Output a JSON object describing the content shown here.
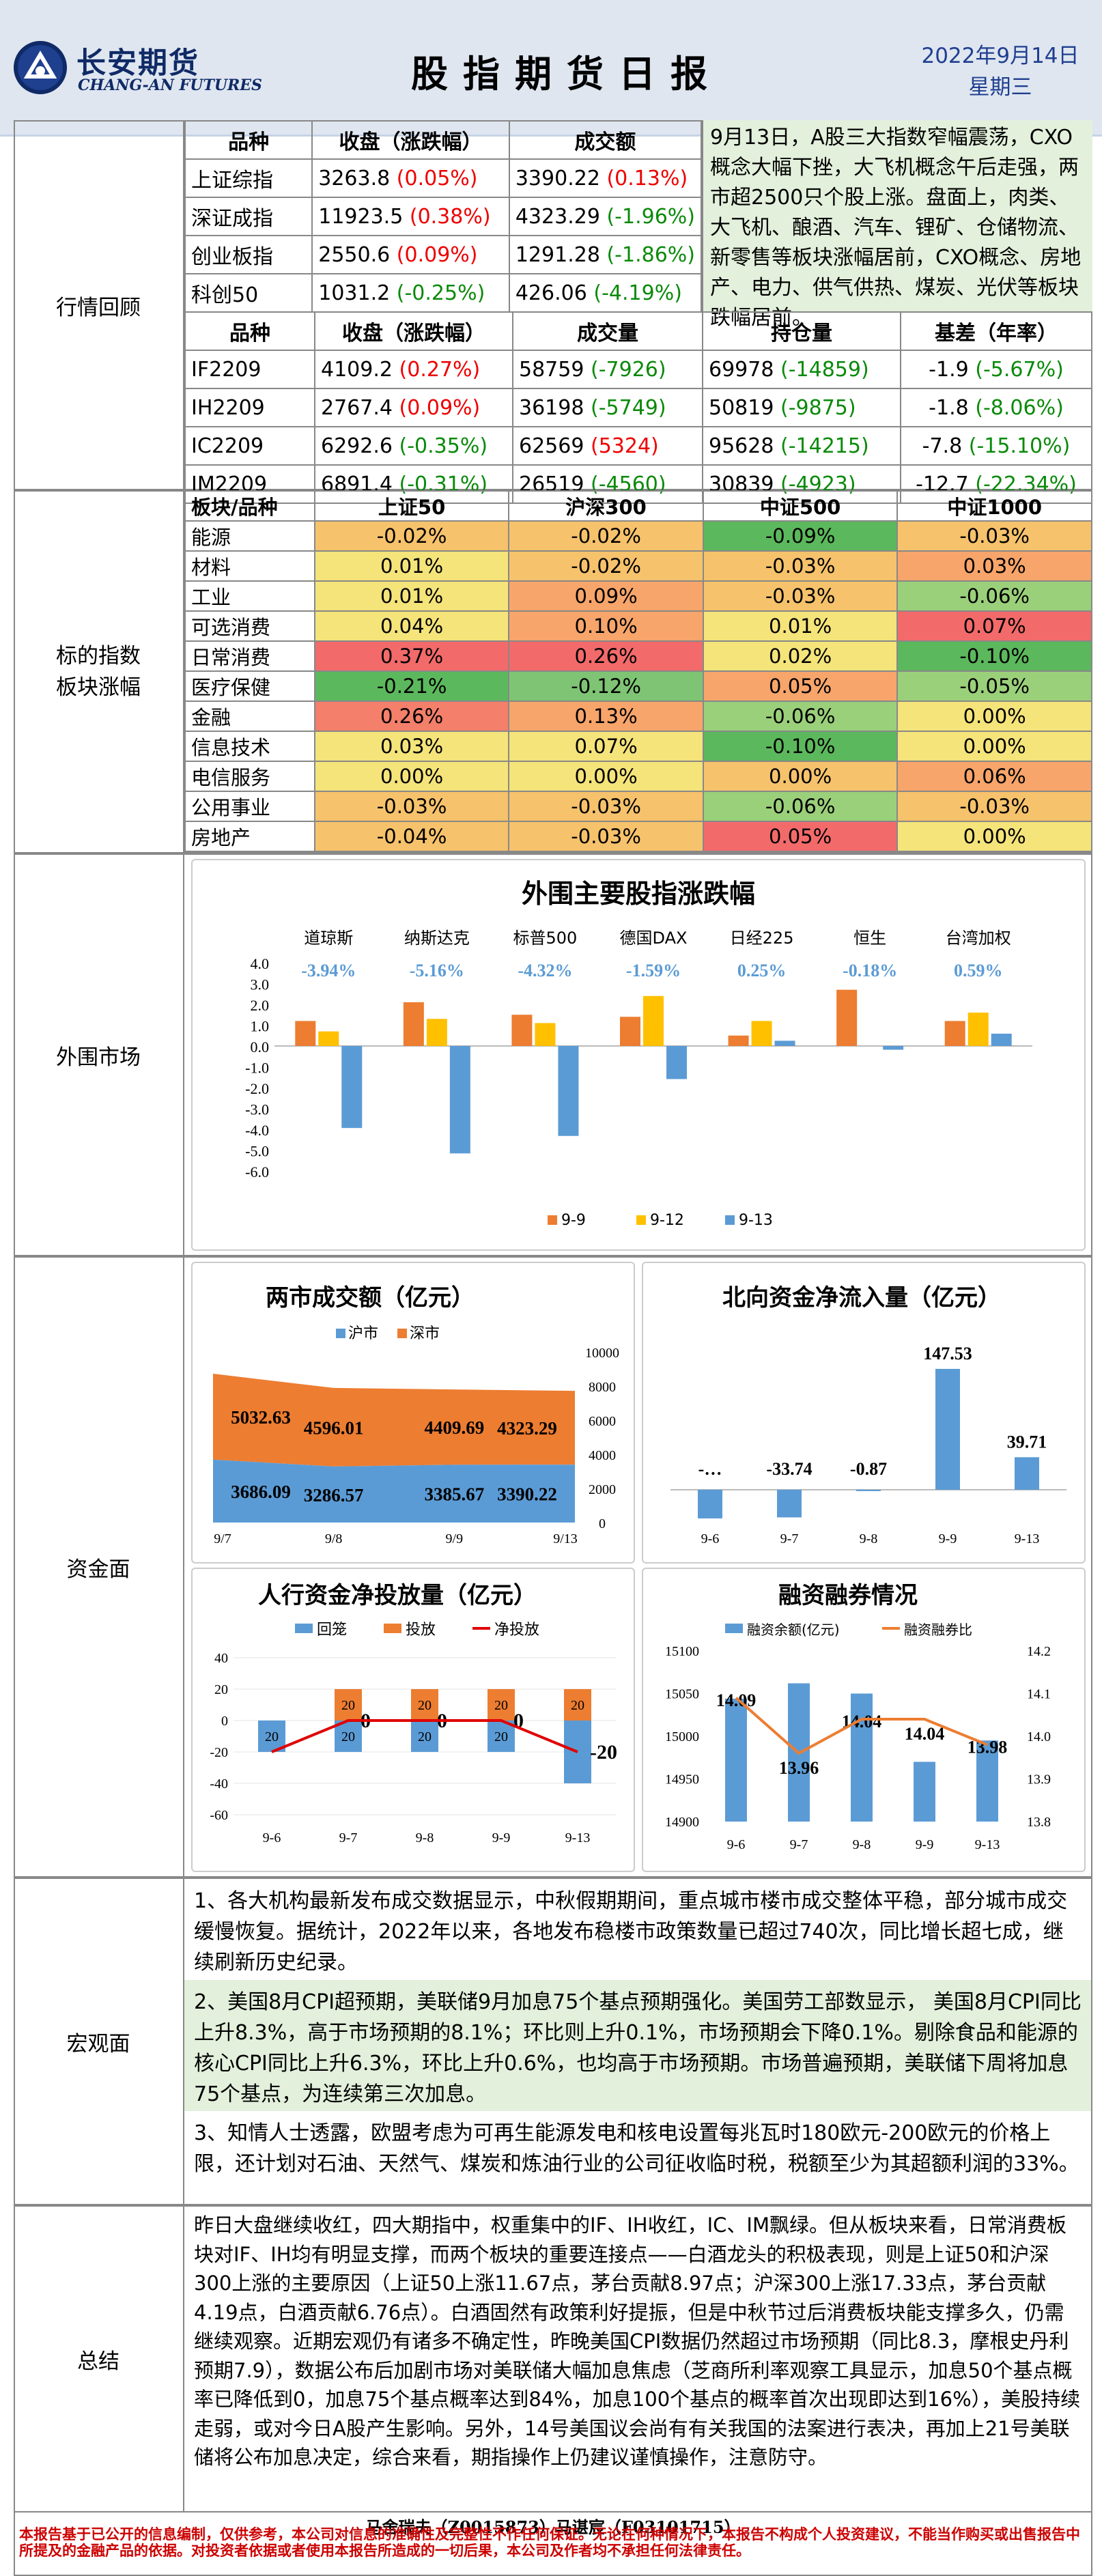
{
  "header": {
    "brand_cn": "长安期货",
    "brand_en": "CHANG-AN FUTURES",
    "title": "股指期货日报",
    "date": "2022年9月14日",
    "weekday": "星期三"
  },
  "sections": {
    "market": "行情回顾",
    "sectors": "标的指数\n板块涨幅",
    "overseas": "外围市场",
    "funds": "资金面",
    "macro": "宏观面",
    "summary": "总结"
  },
  "index_table": {
    "headers": [
      "品种",
      "收盘（涨跌幅）",
      "成交额"
    ],
    "rows": [
      [
        "上证综指",
        "3263.8",
        "(0.05%)",
        "3390.22",
        "(0.13%)"
      ],
      [
        "深证成指",
        "11923.5",
        "(0.38%)",
        "4323.29",
        "(-1.96%)"
      ],
      [
        "创业板指",
        "2550.6",
        "(0.09%)",
        "1291.28",
        "(-1.86%)"
      ],
      [
        "科创50",
        "1031.2",
        "(-0.25%)",
        "426.06",
        "(-4.19%)"
      ]
    ]
  },
  "futures_table": {
    "headers": [
      "品种",
      "收盘（涨跌幅）",
      "成交量",
      "持仓量",
      "基差（年率）"
    ],
    "rows": [
      [
        "IF2209",
        "4109.2",
        "(0.27%)",
        "58759",
        "(-7926)",
        "69978",
        "(-14859)",
        "-1.9",
        "(-5.67%)"
      ],
      [
        "IH2209",
        "2767.4",
        "(0.09%)",
        "36198",
        "(-5749)",
        "50819",
        "(-9875)",
        "-1.8",
        "(-8.06%)"
      ],
      [
        "IC2209",
        "6292.6",
        "(-0.35%)",
        "62569",
        "(5324)",
        "95628",
        "(-14215)",
        "-7.8",
        "(-15.10%)"
      ],
      [
        "IM2209",
        "6891.4",
        "(-0.31%)",
        "26519",
        "(-4560)",
        "30839",
        "(-4923)",
        "-12.7",
        "(-22.34%)"
      ]
    ]
  },
  "market_comment": "9月13日，A股三大指数窄幅震荡，CXO概念大幅下挫，大飞机概念午后走强，两市超2500只个股上涨。盘面上，肉类、大飞机、酿酒、汽车、锂矿、仓储物流、新零售等板块涨幅居前，CXO概念、房地产、电力、供气供热、煤炭、光伏等板块跌幅居前。",
  "heat": {
    "headers": [
      "板块/品种",
      "上证50",
      "沪深300",
      "中证500",
      "中证1000"
    ],
    "rows": [
      [
        "能源",
        "-0.02%",
        "-0.02%",
        "-0.09%",
        "-0.03%"
      ],
      [
        "材料",
        "0.01%",
        "-0.02%",
        "-0.03%",
        "0.03%"
      ],
      [
        "工业",
        "0.01%",
        "0.09%",
        "-0.03%",
        "-0.06%"
      ],
      [
        "可选消费",
        "0.04%",
        "0.10%",
        "0.01%",
        "0.07%"
      ],
      [
        "日常消费",
        "0.37%",
        "0.26%",
        "0.02%",
        "-0.10%"
      ],
      [
        "医疗保健",
        "-0.21%",
        "-0.12%",
        "0.05%",
        "-0.05%"
      ],
      [
        "金融",
        "0.26%",
        "0.13%",
        "-0.06%",
        "0.00%"
      ],
      [
        "信息技术",
        "0.03%",
        "0.07%",
        "-0.10%",
        "0.00%"
      ],
      [
        "电信服务",
        "0.00%",
        "0.00%",
        "0.00%",
        "0.06%"
      ],
      [
        "公用事业",
        "-0.03%",
        "-0.03%",
        "-0.06%",
        "-0.03%"
      ],
      [
        "房地产",
        "-0.04%",
        "-0.03%",
        "0.05%",
        "0.00%"
      ]
    ],
    "colors": [
      [
        "#f6c26b",
        "#f6c26b",
        "#5cb85c",
        "#f6c26b"
      ],
      [
        "#f4e47a",
        "#f6c26b",
        "#f6c26b",
        "#f7a56a"
      ],
      [
        "#f4e47a",
        "#f7a56a",
        "#f6c26b",
        "#9bd07a"
      ],
      [
        "#f4e47a",
        "#f7a56a",
        "#f4e47a",
        "#f36a6a"
      ],
      [
        "#f36a6a",
        "#f36a6a",
        "#f4e47a",
        "#5cb85c"
      ],
      [
        "#5cb85c",
        "#7fc474",
        "#f7a56a",
        "#9bd07a"
      ],
      [
        "#f47f6a",
        "#f7a56a",
        "#9bd07a",
        "#f4e47a"
      ],
      [
        "#f4e47a",
        "#f4e47a",
        "#5cb85c",
        "#f4e47a"
      ],
      [
        "#f4e47a",
        "#f4e47a",
        "#f6c26b",
        "#f7a56a"
      ],
      [
        "#f6c26b",
        "#f6c26b",
        "#9bd07a",
        "#f6c26b"
      ],
      [
        "#f6c26b",
        "#f6c26b",
        "#f36a6a",
        "#f4e47a"
      ]
    ]
  },
  "chart_data": [
    {
      "type": "bar",
      "title": "外围主要股指涨跌幅",
      "categories": [
        "道琼斯",
        "纳斯达克",
        "标普500",
        "德国DAX",
        "日经225",
        "恒生",
        "台湾加权"
      ],
      "series": [
        {
          "name": "9-9",
          "values": [
            1.2,
            2.1,
            1.5,
            1.4,
            0.5,
            2.7,
            1.2
          ]
        },
        {
          "name": "9-12",
          "values": [
            0.7,
            1.3,
            1.1,
            2.4,
            1.2,
            0,
            1.6
          ]
        },
        {
          "name": "9-13",
          "values": [
            -3.94,
            -5.16,
            -4.32,
            -1.59,
            0.25,
            -0.18,
            0.59
          ]
        }
      ],
      "labels": [
        "-3.94%",
        "-5.16%",
        "-4.32%",
        "-1.59%",
        "0.25%",
        "-0.18%",
        "0.59%"
      ],
      "yticks": [
        "4.0",
        "3.0",
        "2.0",
        "1.0",
        "0.0",
        "-1.0",
        "-2.0",
        "-3.0",
        "-4.0",
        "-5.0",
        "-6.0"
      ],
      "ylim": [
        -6,
        4
      ],
      "colors": [
        "#ed7d31",
        "#ffc000",
        "#5b9bd5"
      ]
    },
    {
      "type": "area",
      "title": "两市成交额（亿元）",
      "categories": [
        "9/7",
        "9/8",
        "9/9",
        "9/13"
      ],
      "series": [
        {
          "name": "沪市",
          "values": [
            3686.09,
            3286.57,
            3385.67,
            3390.22
          ]
        },
        {
          "name": "深市",
          "values": [
            5032.63,
            4596.01,
            4409.69,
            4323.29
          ]
        }
      ],
      "yticks": [
        "10000",
        "8000",
        "6000",
        "4000",
        "2000",
        "0"
      ],
      "ylim": [
        0,
        10000
      ],
      "colors": [
        "#5b9bd5",
        "#ed7d31"
      ]
    },
    {
      "type": "bar",
      "title": "北向资金净流入量（亿元）",
      "categories": [
        "9-6",
        "9-7",
        "9-8",
        "9-9",
        "9-13"
      ],
      "values": [
        -35,
        -33.74,
        -0.87,
        147.53,
        39.71
      ],
      "labels": [
        "-…",
        "-33.74",
        "-0.87",
        "147.53",
        "39.71"
      ],
      "color": "#5b9bd5"
    },
    {
      "type": "bar",
      "title": "人行资金净投放量（亿元）",
      "categories": [
        "9-6",
        "9-7",
        "9-8",
        "9-9",
        "9-13"
      ],
      "series": [
        {
          "name": "回笼",
          "values": [
            -20,
            -20,
            -20,
            -20,
            -40
          ]
        },
        {
          "name": "投放",
          "values": [
            0,
            20,
            20,
            20,
            20
          ]
        },
        {
          "name": "净投放",
          "values": [
            -20,
            0,
            0,
            0,
            -20
          ]
        }
      ],
      "bar_labels_back": [
        "20",
        "20",
        "20",
        "20",
        ""
      ],
      "bar_labels_put": [
        "",
        "20",
        "20",
        "20",
        "20"
      ],
      "net_labels": [
        "",
        "0",
        "0",
        "0",
        "-20"
      ],
      "yticks": [
        "40",
        "20",
        "0",
        "-20",
        "-40",
        "-60"
      ],
      "ylim": [
        -60,
        40
      ],
      "colors": [
        "#5b9bd5",
        "#ed7d31",
        "#e00000"
      ]
    },
    {
      "type": "bar",
      "title": "融资融券情况",
      "categories": [
        "9-6",
        "9-7",
        "9-8",
        "9-9",
        "9-13"
      ],
      "series": [
        {
          "name": "融资余额(亿元)",
          "values": [
            15044,
            15062,
            15050,
            14970,
            14995
          ]
        },
        {
          "name": "融资融券比",
          "values": [
            14.09,
            13.96,
            14.04,
            14.04,
            13.98
          ]
        }
      ],
      "ratio_labels": [
        "14.09",
        "13.96",
        "14.04",
        "14.04",
        "13.98"
      ],
      "yticks": [
        "15100",
        "15050",
        "15000",
        "14950",
        "14900"
      ],
      "yticks2": [
        "14.2",
        "14.1",
        "14.0",
        "13.9",
        "13.8"
      ],
      "ylim": [
        14900,
        15100
      ],
      "ylim2": [
        13.8,
        14.2
      ],
      "colors": [
        "#5b9bd5",
        "#ed7d31"
      ]
    }
  ],
  "macro": [
    "1、各大机构最新发布成交数据显示，中秋假期期间，重点城市楼市成交整体平稳，部分城市成交缓慢恢复。据统计，2022年以来，各地发布稳楼市政策数量已超过740次，同比增长超七成，继续刷新历史纪录。",
    "2、美国8月CPI超预期，美联储9月加息75个基点预期强化。美国劳工部数显示， 美国8月CPI同比上升8.3%，高于市场预期的8.1%；环比则上升0.1%，市场预期会下降0.1%。剔除食品和能源的核心CPI同比上升6.3%，环比上升0.6%，也均高于市场预期。市场普遍预期，美联储下周将加息75个基点，为连续第三次加息。",
    "3、知情人士透露，欧盟考虑为可再生能源发电和核电设置每兆瓦时180欧元-200欧元的价格上限，还计划对石油、天然气、煤炭和炼油行业的公司征收临时税，税额至少为其超额利润的33%。"
  ],
  "summary": "昨日大盘继续收红，四大期指中，权重集中的IF、IH收红，IC、IM飘绿。但从板块来看，日常消费板块对IF、IH均有明显支撑，而两个板块的重要连接点——白酒龙头的积极表现，则是上证50和沪深300上涨的主要原因（上证50上涨11.67点，茅台贡献8.97点；沪深300上涨17.33点，茅台贡献4.19点，白酒贡献6.76点）。白酒固然有政策利好提振，但是中秋节过后消费板块能支撑多久，仍需继续观察。近期宏观仍有诸多不确定性，昨晚美国CPI数据仍然超过市场预期（同比8.3，摩根史丹利预期7.9），数据公布后加剧市场对美联储大幅加息焦虑（芝商所利率观察工具显示，加息50个基点概率已降低到0，加息75个基点概率达到84%，加息100个基点的概率首次出现即达到16%），美股持续走弱，或对今日A股产生影响。另外，14号美国议会尚有有关我国的法案进行表决，再加上21号美联储将公布加息决定，综合来看，期指操作上仍建议谨慎操作，注意防守。",
  "analysts": "马舍瑞夫（Z0015873）马谌宸（F03101715）",
  "disclaimer": "本报告基于已公开的信息编制，仅供参考，本公司对信息的准确性及完整性不作任何保证。无论在何种情况下，本报告不构成个人投资建议，不能当作购买或出售报告中所提及的金融产品的依据。对投资者依据或者使用本报告所造成的一切后果，本公司及作者均不承担任何法律责任。"
}
